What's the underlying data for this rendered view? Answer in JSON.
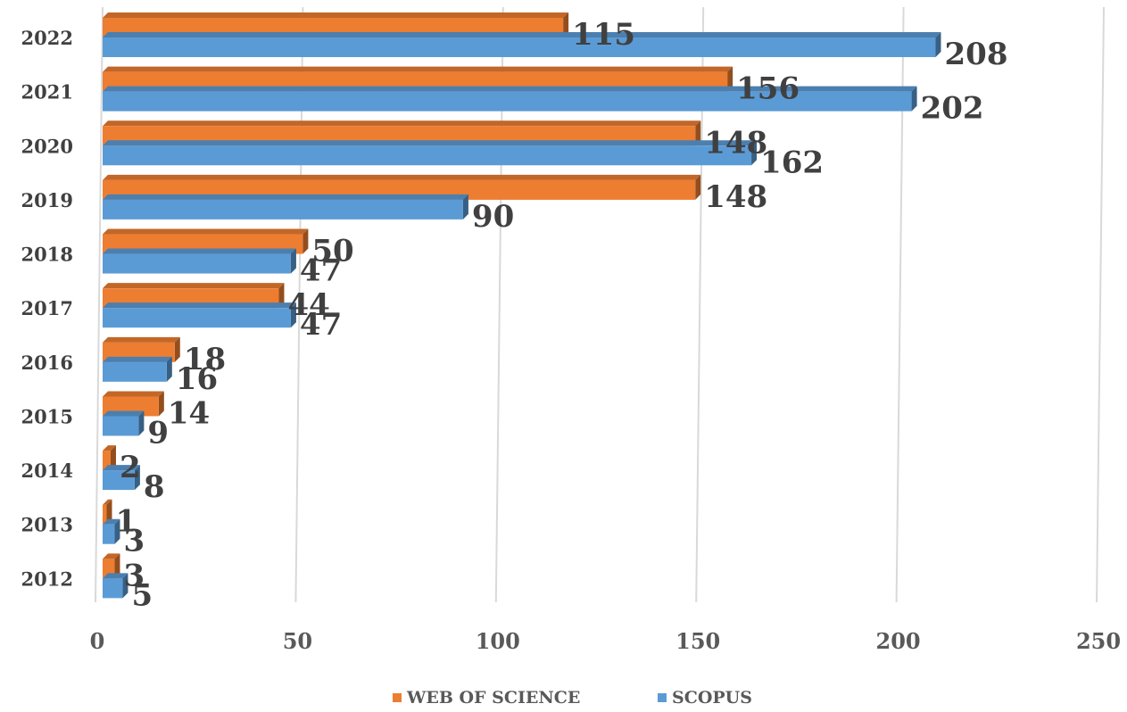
{
  "chart_data": {
    "type": "bar",
    "orientation": "horizontal",
    "categories": [
      "2022",
      "2021",
      "2020",
      "2019",
      "2018",
      "2017",
      "2016",
      "2015",
      "2014",
      "2013",
      "2012"
    ],
    "series": [
      {
        "name": "WEB OF SCIENCE",
        "color": "#ED7D31",
        "values": [
          115,
          156,
          148,
          148,
          50,
          44,
          18,
          14,
          2,
          1,
          3
        ]
      },
      {
        "name": "SCOPUS",
        "color": "#5B9BD5",
        "values": [
          208,
          202,
          162,
          90,
          47,
          47,
          16,
          9,
          8,
          3,
          5
        ]
      }
    ],
    "xlim": [
      0,
      250
    ],
    "x_ticks": [
      "0",
      "50",
      "100",
      "150",
      "200",
      "250"
    ],
    "grid": "vertical",
    "legend": "bottom",
    "title": "",
    "xlabel": "",
    "ylabel": ""
  }
}
